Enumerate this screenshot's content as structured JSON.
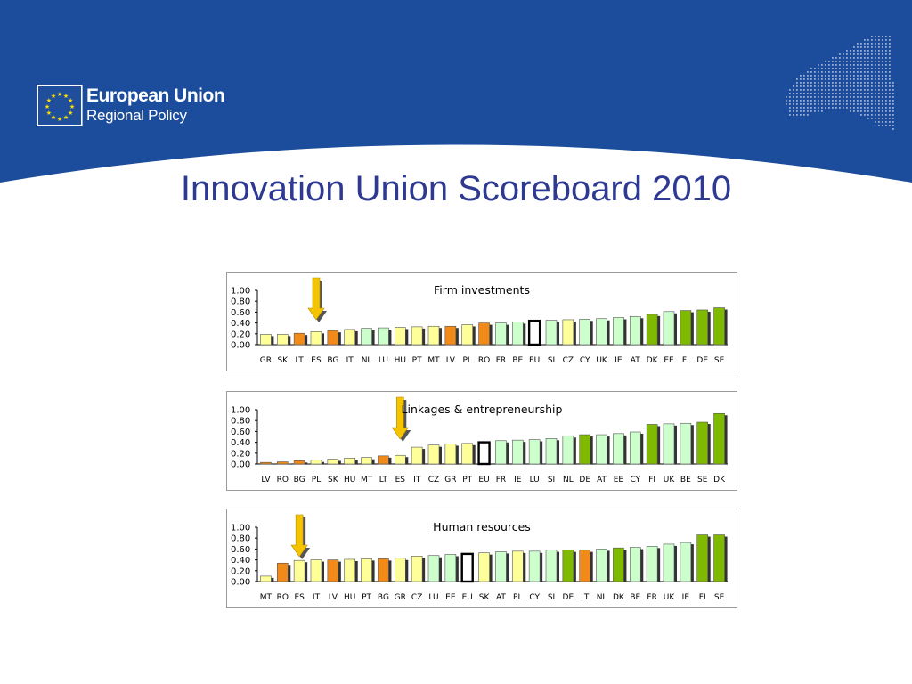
{
  "header": {
    "logo_name": "European Union",
    "logo_sub": "Regional Policy",
    "page_title": "Innovation Union Scoreboard 2010"
  },
  "colors": {
    "banner_blue": "#1b4d9c",
    "title_blue": "#2e3a92",
    "low_orange": "#f28a1a",
    "moderate_yellow": "#ffff99",
    "follower_lightgreen": "#ccffcc",
    "leader_green": "#7fba00",
    "arrow_gold": "#f5c400"
  },
  "chart_data": [
    {
      "type": "bar",
      "title": "Firm investments",
      "ylim": [
        0,
        1
      ],
      "yticks": [
        "1.00",
        "0.80",
        "0.60",
        "0.40",
        "0.20",
        "0.00"
      ],
      "categories": [
        "GR",
        "SK",
        "LT",
        "ES",
        "BG",
        "IT",
        "NL",
        "LU",
        "HU",
        "PT",
        "MT",
        "LV",
        "PL",
        "RO",
        "FR",
        "BE",
        "EU",
        "SI",
        "CZ",
        "CY",
        "UK",
        "IE",
        "AT",
        "DK",
        "EE",
        "FI",
        "DE",
        "SE"
      ],
      "values": [
        0.19,
        0.19,
        0.21,
        0.24,
        0.26,
        0.28,
        0.3,
        0.31,
        0.32,
        0.33,
        0.34,
        0.34,
        0.37,
        0.4,
        0.4,
        0.42,
        0.44,
        0.45,
        0.46,
        0.47,
        0.48,
        0.5,
        0.52,
        0.56,
        0.61,
        0.63,
        0.64,
        0.68
      ],
      "groups": [
        "moderate",
        "moderate",
        "low",
        "moderate",
        "low",
        "moderate",
        "follower",
        "follower",
        "moderate",
        "moderate",
        "moderate",
        "low",
        "moderate",
        "low",
        "follower",
        "follower",
        "eu",
        "follower",
        "moderate",
        "follower",
        "follower",
        "follower",
        "follower",
        "leader",
        "follower",
        "leader",
        "leader",
        "leader"
      ],
      "marker": "ES",
      "grid": false,
      "legend": "none"
    },
    {
      "type": "bar",
      "title": "Linkages & entrepreneurship",
      "ylim": [
        0,
        1
      ],
      "yticks": [
        "1.00",
        "0.80",
        "0.60",
        "0.40",
        "0.20",
        "0.00"
      ],
      "categories": [
        "LV",
        "RO",
        "BG",
        "PL",
        "SK",
        "HU",
        "MT",
        "LT",
        "ES",
        "IT",
        "CZ",
        "GR",
        "PT",
        "EU",
        "FR",
        "IE",
        "LU",
        "SI",
        "NL",
        "DE",
        "AT",
        "EE",
        "CY",
        "FI",
        "UK",
        "BE",
        "SE",
        "DK"
      ],
      "values": [
        0.03,
        0.04,
        0.06,
        0.07,
        0.09,
        0.11,
        0.12,
        0.15,
        0.16,
        0.31,
        0.35,
        0.37,
        0.38,
        0.4,
        0.43,
        0.44,
        0.45,
        0.47,
        0.52,
        0.54,
        0.54,
        0.56,
        0.59,
        0.73,
        0.74,
        0.75,
        0.77,
        0.93
      ],
      "groups": [
        "low",
        "low",
        "low",
        "moderate",
        "moderate",
        "moderate",
        "moderate",
        "low",
        "moderate",
        "moderate",
        "moderate",
        "moderate",
        "moderate",
        "eu",
        "follower",
        "follower",
        "follower",
        "follower",
        "follower",
        "leader",
        "follower",
        "follower",
        "follower",
        "leader",
        "follower",
        "follower",
        "leader",
        "leader"
      ],
      "marker": "ES",
      "grid": false,
      "legend": "none"
    },
    {
      "type": "bar",
      "title": "Human resources",
      "ylim": [
        0,
        1
      ],
      "yticks": [
        "1.00",
        "0.80",
        "0.60",
        "0.40",
        "0.20",
        "0.00"
      ],
      "categories": [
        "MT",
        "RO",
        "ES",
        "IT",
        "LV",
        "HU",
        "PT",
        "BG",
        "GR",
        "CZ",
        "LU",
        "EE",
        "EU",
        "SK",
        "AT",
        "PL",
        "CY",
        "SI",
        "DE",
        "LT",
        "NL",
        "DK",
        "BE",
        "FR",
        "UK",
        "IE",
        "FI",
        "SE"
      ],
      "values": [
        0.1,
        0.34,
        0.39,
        0.4,
        0.4,
        0.41,
        0.42,
        0.42,
        0.43,
        0.47,
        0.48,
        0.5,
        0.51,
        0.53,
        0.55,
        0.56,
        0.56,
        0.58,
        0.58,
        0.58,
        0.6,
        0.62,
        0.63,
        0.65,
        0.69,
        0.72,
        0.86,
        0.86
      ],
      "groups": [
        "moderate",
        "low",
        "moderate",
        "moderate",
        "low",
        "moderate",
        "moderate",
        "low",
        "moderate",
        "moderate",
        "follower",
        "follower",
        "eu",
        "moderate",
        "follower",
        "moderate",
        "follower",
        "follower",
        "leader",
        "low",
        "follower",
        "leader",
        "follower",
        "follower",
        "follower",
        "follower",
        "leader",
        "leader"
      ],
      "marker": "ES",
      "grid": false,
      "legend": "none"
    }
  ]
}
